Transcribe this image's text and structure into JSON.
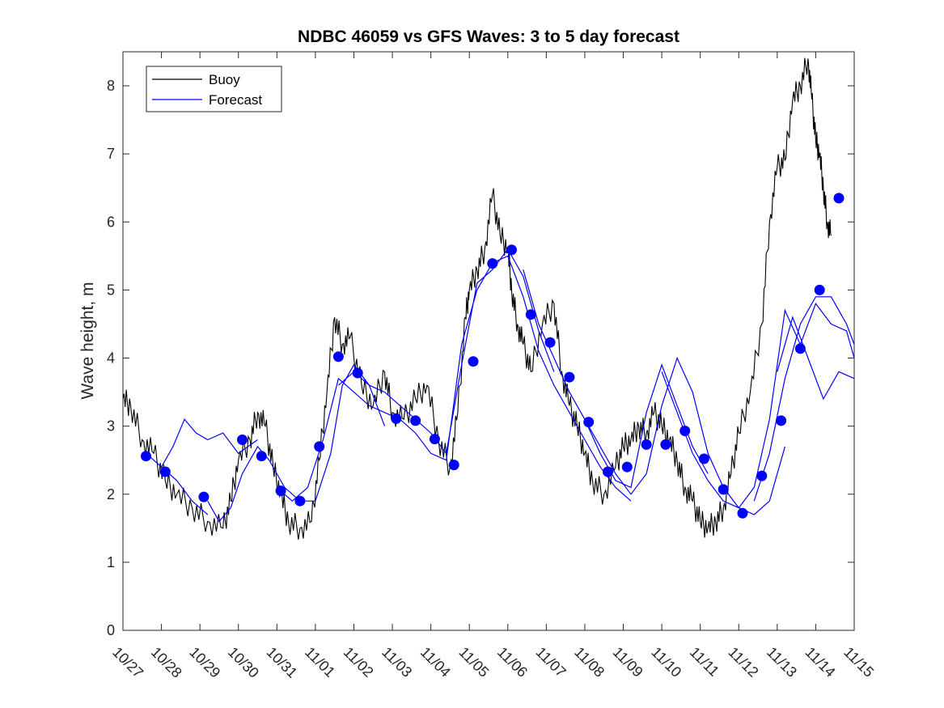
{
  "chart_data": {
    "type": "line",
    "title": "NDBC 46059 vs GFS Waves: 3 to 5 day forecast",
    "xlabel": "",
    "ylabel": "Wave height, m",
    "xlim": [
      0,
      19
    ],
    "ylim": [
      0,
      8.5
    ],
    "yticks": [
      0,
      1,
      2,
      3,
      4,
      5,
      6,
      7,
      8
    ],
    "xtick_labels": [
      "10/27",
      "10/28",
      "10/29",
      "10/30",
      "10/31",
      "11/01",
      "11/02",
      "11/03",
      "11/04",
      "11/05",
      "11/06",
      "11/07",
      "11/08",
      "11/09",
      "11/10",
      "11/11",
      "11/12",
      "11/13",
      "11/14",
      "11/15"
    ],
    "legend": {
      "placement": "top-left",
      "entries": [
        "Buoy",
        "Forecast"
      ]
    },
    "colors": {
      "buoy": "#000000",
      "forecast": "#0000ff",
      "points": "#0000ff"
    },
    "buoy": {
      "name": "Buoy",
      "x": [
        0,
        0.2,
        0.5,
        0.8,
        1.1,
        1.4,
        1.8,
        2.2,
        2.6,
        2.8,
        3.0,
        3.3,
        3.5,
        3.7,
        3.9,
        4.1,
        4.3,
        4.6,
        4.9,
        5.1,
        5.3,
        5.5,
        5.7,
        5.9,
        6.2,
        6.5,
        6.8,
        7.0,
        7.3,
        7.6,
        7.9,
        8.2,
        8.5,
        8.7,
        8.9,
        9.0,
        9.2,
        9.4,
        9.6,
        9.8,
        10.0,
        10.1,
        10.25,
        10.4,
        10.6,
        10.9,
        11.2,
        11.4,
        11.6,
        11.8,
        12.0,
        12.2,
        12.5,
        12.8,
        13.0,
        13.2,
        13.4,
        13.6,
        13.8,
        14.0,
        14.2,
        14.4,
        14.6,
        14.8,
        15.0,
        15.2,
        15.4,
        15.6,
        15.8,
        16.0,
        16.3,
        16.6,
        16.8,
        17.0,
        17.2,
        17.4,
        17.6,
        17.8,
        17.9,
        18.0,
        18.1,
        18.2,
        18.3,
        18.4
      ],
      "y": [
        3.4,
        3.3,
        2.8,
        2.6,
        2.2,
        2.0,
        1.8,
        1.6,
        1.5,
        1.9,
        2.5,
        2.8,
        3.2,
        3.0,
        2.4,
        2.0,
        1.6,
        1.5,
        1.6,
        2.5,
        3.5,
        4.6,
        4.2,
        4.3,
        3.6,
        3.3,
        3.8,
        3.2,
        3.1,
        3.4,
        3.6,
        2.8,
        2.4,
        3.2,
        4.6,
        5.0,
        5.3,
        5.6,
        6.4,
        5.8,
        5.6,
        5.0,
        4.5,
        4.2,
        3.8,
        4.5,
        4.8,
        3.8,
        3.3,
        3.0,
        2.6,
        2.2,
        2.0,
        2.4,
        2.7,
        2.8,
        3.0,
        2.9,
        3.2,
        3.0,
        2.8,
        2.5,
        2.1,
        1.9,
        1.6,
        1.5,
        1.6,
        1.8,
        2.3,
        2.9,
        3.5,
        4.5,
        6.0,
        6.8,
        6.9,
        7.8,
        8.0,
        8.4,
        7.8,
        7.2,
        7.0,
        6.5,
        6.0,
        5.8
      ]
    },
    "forecast_runs": [
      {
        "x": [
          0.6,
          1.0,
          1.4,
          1.8,
          2.2
        ],
        "y": [
          2.6,
          2.4,
          2.2,
          1.9,
          1.7
        ]
      },
      {
        "x": [
          1.0,
          1.3,
          1.6,
          1.9,
          2.2,
          2.6,
          3.0,
          3.5
        ],
        "y": [
          2.4,
          2.7,
          3.1,
          2.9,
          2.8,
          2.9,
          2.6,
          2.8
        ]
      },
      {
        "x": [
          2.2,
          2.5,
          2.8,
          3.1,
          3.5,
          3.8,
          4.2,
          4.6,
          5.0,
          5.4,
          5.7,
          6.0,
          6.4,
          6.8
        ],
        "y": [
          1.9,
          1.6,
          1.8,
          2.3,
          2.7,
          2.5,
          2.1,
          1.9,
          1.9,
          2.6,
          3.6,
          3.9,
          3.6,
          3.0
        ]
      },
      {
        "x": [
          4.0,
          4.4,
          4.8,
          5.2,
          5.6,
          6.0,
          6.4,
          6.8,
          7.2,
          7.6,
          8.0,
          8.4
        ],
        "y": [
          2.1,
          1.9,
          2.1,
          2.8,
          3.7,
          3.5,
          3.3,
          3.2,
          3.1,
          2.9,
          2.6,
          2.5
        ]
      },
      {
        "x": [
          5.6,
          6.0,
          6.4,
          6.8,
          7.2,
          7.6,
          8.0,
          8.4,
          8.8,
          9.2,
          9.6,
          10.0,
          10.4,
          10.8,
          11.2
        ],
        "y": [
          3.6,
          3.8,
          3.6,
          3.5,
          3.3,
          3.1,
          2.9,
          2.6,
          3.9,
          5.1,
          5.3,
          5.6,
          5.2,
          4.4,
          3.8
        ]
      },
      {
        "x": [
          8.4,
          8.8,
          9.2,
          9.6,
          10.0,
          10.4,
          10.8,
          11.2,
          11.6,
          12.0,
          12.4,
          12.8,
          13.2
        ],
        "y": [
          2.5,
          4.2,
          5.0,
          5.4,
          5.5,
          4.9,
          4.1,
          3.6,
          3.2,
          2.8,
          2.4,
          2.1,
          1.9
        ]
      },
      {
        "x": [
          10.4,
          10.8,
          11.2,
          11.6,
          12.0,
          12.4,
          12.8,
          13.2,
          13.6,
          14.0,
          14.4,
          14.8,
          15.2
        ],
        "y": [
          5.3,
          4.5,
          4.0,
          3.5,
          3.1,
          2.6,
          2.2,
          2.1,
          3.2,
          3.9,
          3.3,
          2.7,
          2.3
        ]
      },
      {
        "x": [
          12.0,
          12.4,
          12.8,
          13.2,
          13.6,
          14.0,
          14.4,
          14.8,
          15.2,
          15.6,
          16.0,
          16.4,
          16.8,
          17.2
        ],
        "y": [
          3.1,
          2.7,
          2.3,
          2.0,
          2.3,
          3.3,
          4.0,
          3.5,
          2.6,
          2.1,
          1.8,
          1.7,
          1.9,
          2.7
        ]
      },
      {
        "x": [
          14.0,
          14.4,
          14.8,
          15.2,
          15.6,
          16.0,
          16.4,
          16.8,
          17.2,
          17.6,
          18.0,
          18.4,
          18.8,
          19.0
        ],
        "y": [
          3.8,
          3.2,
          2.6,
          2.2,
          1.9,
          1.8,
          2.1,
          3.1,
          4.7,
          4.2,
          4.8,
          4.5,
          4.4,
          4.0
        ]
      },
      {
        "x": [
          16.4,
          16.8,
          17.2,
          17.6,
          18.0,
          18.4,
          18.8,
          19.0
        ],
        "y": [
          1.9,
          2.6,
          3.7,
          4.5,
          4.9,
          4.9,
          4.5,
          4.2
        ]
      },
      {
        "x": [
          17.0,
          17.4,
          17.8,
          18.2,
          18.6,
          19.0
        ],
        "y": [
          3.8,
          4.6,
          4.0,
          3.4,
          3.8,
          3.7
        ]
      }
    ],
    "forecast_points": {
      "x": [
        0.6,
        1.1,
        2.1,
        3.1,
        3.6,
        4.1,
        4.6,
        5.1,
        5.6,
        6.1,
        7.1,
        7.6,
        8.1,
        8.6,
        9.1,
        9.6,
        10.1,
        10.6,
        11.1,
        11.6,
        12.1,
        12.6,
        13.1,
        13.6,
        14.1,
        14.6,
        15.1,
        15.6,
        16.1,
        16.6,
        17.1,
        17.6,
        18.1,
        18.6
      ],
      "y": [
        2.56,
        2.33,
        1.96,
        2.8,
        2.56,
        2.05,
        1.9,
        2.7,
        4.02,
        3.78,
        3.11,
        3.08,
        2.81,
        2.43,
        3.95,
        5.39,
        5.59,
        4.64,
        4.23,
        3.72,
        3.06,
        2.33,
        2.4,
        2.73,
        2.73,
        2.93,
        2.52,
        2.07,
        1.72,
        2.27,
        3.08,
        4.14,
        5.0,
        6.35
      ]
    }
  }
}
